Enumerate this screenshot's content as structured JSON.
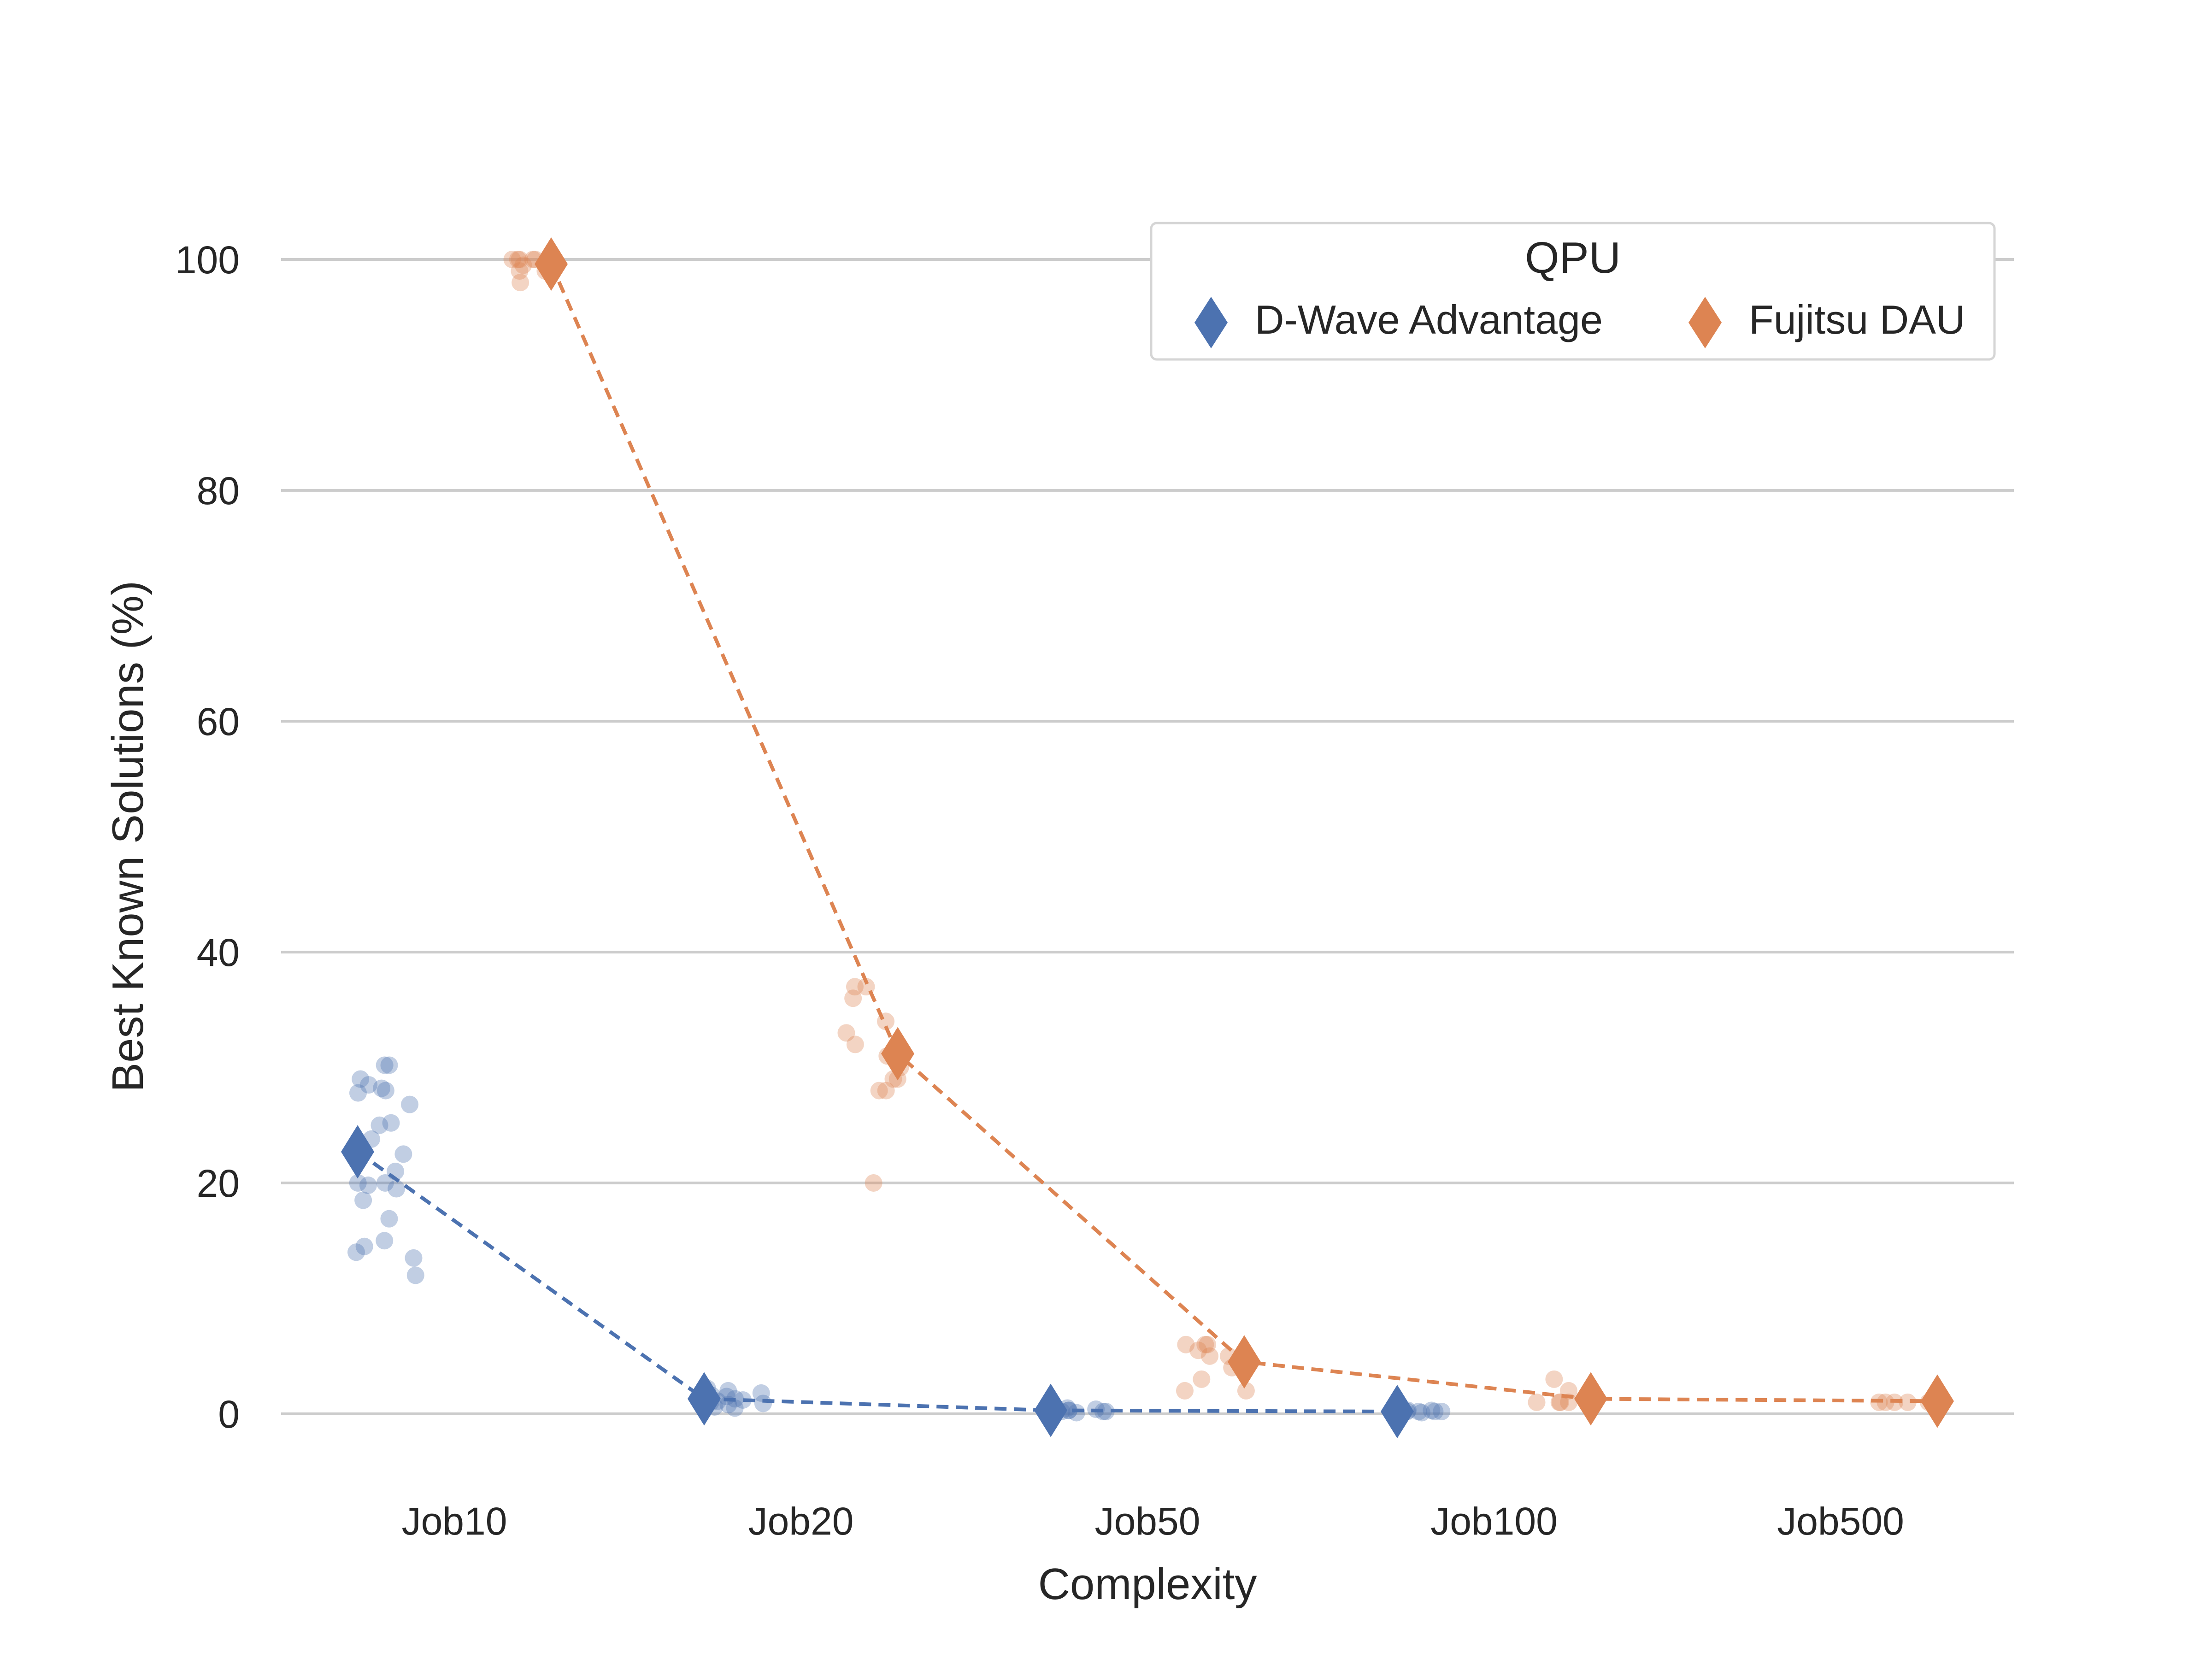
{
  "chart_data": {
    "type": "scatter",
    "xlabel": "Complexity",
    "ylabel": "Best Known Solutions (%)",
    "categories": [
      "Job10",
      "Job20",
      "Job50",
      "Job100",
      "Job500"
    ],
    "yticks": [
      "0",
      "20",
      "40",
      "60",
      "80",
      "100"
    ],
    "ylim": [
      -5,
      105
    ],
    "grid": "horizontal",
    "legend": {
      "title": "QPU",
      "placement": "top-right"
    },
    "series": [
      {
        "name": "D-Wave Advantage",
        "color": "#4c72b0",
        "marker": "diamond",
        "means": [
          22.7,
          1.3,
          0.3,
          0.2,
          null
        ],
        "points": [
          [
            30.2,
            30.2,
            29.0,
            28.5,
            28.2,
            28.0,
            27.8,
            26.8,
            25.2,
            25.0,
            23.8,
            22.5,
            21.0,
            20.0,
            20.0,
            19.8,
            19.5,
            18.5,
            16.9,
            15.0,
            14.5,
            14.0,
            13.5,
            12.0
          ],
          [
            2.2,
            2.0,
            1.8,
            1.6,
            1.5,
            1.3,
            1.2,
            1.1,
            1.0,
            0.9,
            0.8,
            0.6,
            0.5
          ],
          [
            0.5,
            0.4,
            0.4,
            0.3,
            0.3,
            0.3,
            0.2,
            0.2,
            0.2,
            0.1
          ],
          [
            0.3,
            0.3,
            0.2,
            0.2,
            0.2,
            0.2,
            0.2,
            0.1,
            0.1,
            0.1
          ],
          []
        ]
      },
      {
        "name": "Fujitsu DAU",
        "color": "#dd8452",
        "marker": "diamond",
        "means": [
          99.6,
          31.2,
          4.5,
          1.3,
          1.1
        ],
        "points": [
          [
            100,
            100,
            100,
            100,
            100,
            100,
            99.5,
            99.0,
            99.0,
            98.0
          ],
          [
            37.0,
            37.0,
            36.0,
            34.0,
            33.0,
            32.0,
            31.0,
            31.0,
            30.0,
            29.0,
            29.0,
            28.0,
            28.0,
            20.0
          ],
          [
            6.0,
            6.0,
            6.0,
            5.5,
            5.0,
            5.0,
            4.0,
            3.0,
            2.0,
            2.0
          ],
          [
            3.0,
            2.0,
            1.0,
            1.0,
            1.0,
            1.0,
            1.0,
            1.0
          ],
          [
            1.0,
            1.0,
            1.0,
            1.0,
            1.0,
            1.0
          ]
        ]
      }
    ]
  }
}
